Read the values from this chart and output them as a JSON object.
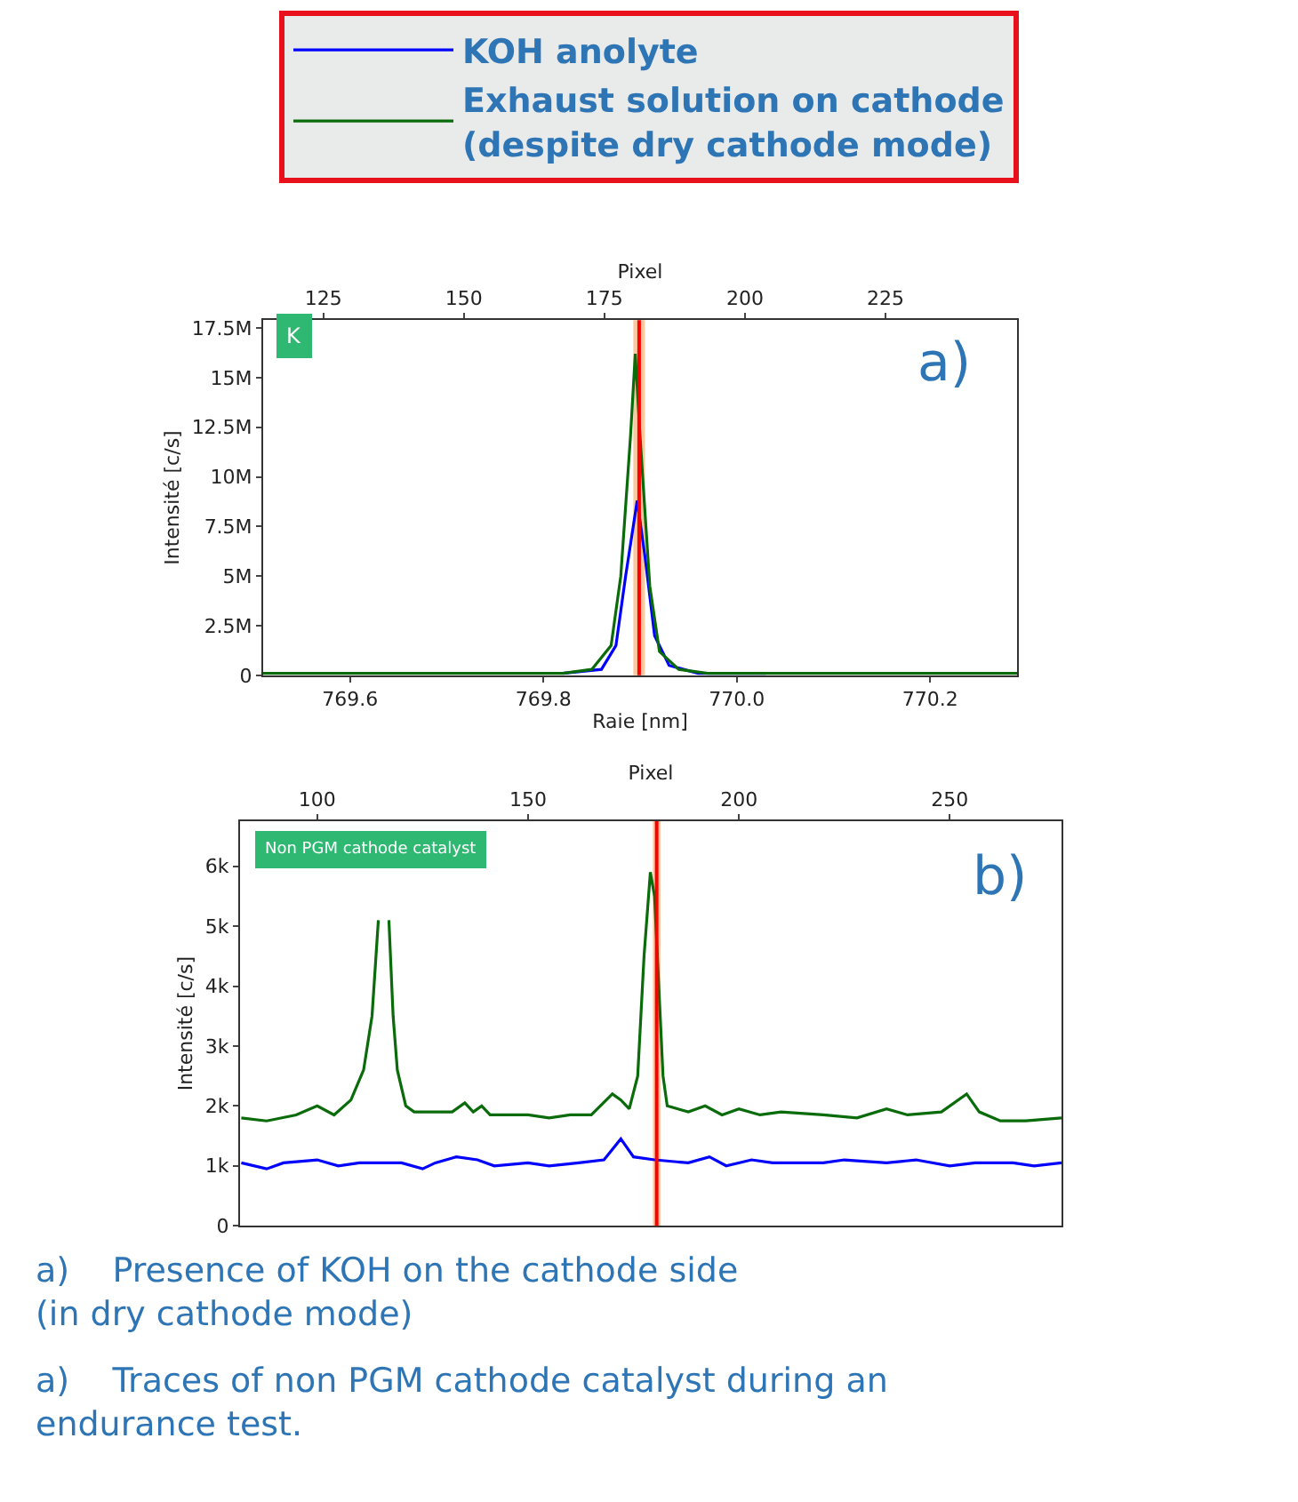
{
  "chart_data": [
    {
      "type": "line",
      "xlabel": "Raie [nm]",
      "x2label": "Pixel",
      "ylabel": "Intensité [c/s]",
      "xlim": [
        769.51,
        770.29
      ],
      "xticks": [
        {
          "value": 769.6,
          "label": "769.6"
        },
        {
          "value": 769.8,
          "label": "769.8"
        },
        {
          "value": 770.0,
          "label": "770.0"
        },
        {
          "value": 770.2,
          "label": "770.2"
        }
      ],
      "x2lim": [
        114.3,
        248.4
      ],
      "x2ticks": [
        125,
        150,
        175,
        200,
        225
      ],
      "ylim": [
        0,
        17900000
      ],
      "yticks": [
        0,
        {
          "value": 2500000,
          "label": "2.5M"
        },
        {
          "value": 5000000,
          "label": "5M"
        },
        {
          "value": 7500000,
          "label": "7.5M"
        },
        {
          "value": 10000000,
          "label": "10M"
        },
        {
          "value": 12500000,
          "label": "12.5M"
        },
        {
          "value": 15000000,
          "label": "15M"
        },
        {
          "value": 17500000,
          "label": "17.5M"
        }
      ],
      "series": [
        {
          "name": "KOH anolyte",
          "color": "#0000ff",
          "x": [
            769.82,
            769.86,
            769.875,
            769.885,
            769.897,
            769.905,
            769.915,
            769.93,
            769.96,
            770.03
          ],
          "values": [
            100000,
            300000,
            1500000,
            5000000,
            8800000,
            6000000,
            2000000,
            500000,
            100000,
            100000
          ]
        },
        {
          "name": "Exhaust solution on cathode\n(despite dry cathode mode)",
          "color": "#0a6b0a",
          "x": [
            769.51,
            769.82,
            769.85,
            769.87,
            769.88,
            769.89,
            769.895,
            769.9,
            769.91,
            769.92,
            769.94,
            769.97,
            770.29
          ],
          "values": [
            100000,
            100000,
            300000,
            1500000,
            5000000,
            12000000,
            16200000,
            12000000,
            4500000,
            1200000,
            300000,
            100000,
            100000
          ]
        }
      ],
      "ref_lines": [
        {
          "axis": "x",
          "value": 769.899,
          "color": "#ff0000"
        }
      ],
      "bands": [
        {
          "axis": "x",
          "from": 769.893,
          "to": 769.905,
          "color": "#f9c9a0"
        }
      ],
      "annotations": [
        "K",
        "a)"
      ],
      "legend": "top",
      "grid": false
    },
    {
      "type": "line",
      "xlabel": "Pixel",
      "ylabel": "Intensité [c/s]",
      "xlim": [
        81.7,
        276.5
      ],
      "xticks": [
        100,
        150,
        200,
        250
      ],
      "ylim": [
        0,
        6750
      ],
      "yticks": [
        0,
        {
          "value": 1000,
          "label": "1k"
        },
        {
          "value": 2000,
          "label": "2k"
        },
        {
          "value": 3000,
          "label": "3k"
        },
        {
          "value": 4000,
          "label": "4k"
        },
        {
          "value": 5000,
          "label": "5k"
        },
        {
          "value": 6000,
          "label": "6k"
        }
      ],
      "series": [
        {
          "color": "#0000ff",
          "x": [
            82,
            88,
            92,
            100,
            105,
            110,
            120,
            125,
            128,
            133,
            138,
            142,
            150,
            155,
            162,
            168,
            172,
            175,
            180,
            188,
            193,
            197,
            203,
            208,
            220,
            225,
            235,
            242,
            250,
            256,
            265,
            270,
            276.5
          ],
          "values": [
            1050,
            950,
            1050,
            1100,
            1000,
            1050,
            1050,
            950,
            1050,
            1150,
            1100,
            1000,
            1050,
            1000,
            1050,
            1100,
            1450,
            1150,
            1100,
            1050,
            1150,
            1000,
            1100,
            1050,
            1050,
            1100,
            1050,
            1100,
            1000,
            1050,
            1050,
            1000,
            1050
          ]
        },
        {
          "color": "#0a6b0a",
          "x": [
            82,
            88,
            95,
            100,
            104,
            108,
            111,
            113,
            114.5,
            115.8,
            117,
            118,
            119,
            121,
            123,
            127,
            132,
            135,
            137,
            139,
            141,
            150,
            155,
            160,
            165,
            170,
            172,
            174,
            176,
            177.5,
            179,
            180,
            181,
            182,
            183,
            188,
            192,
            196,
            200,
            205,
            210,
            220,
            228,
            235,
            240,
            248,
            254,
            257,
            262,
            268,
            276.5
          ],
          "values": [
            1800,
            1750,
            1850,
            2000,
            1850,
            2100,
            2600,
            3500,
            5100,
            null,
            5100,
            3500,
            2600,
            2000,
            1900,
            1900,
            1900,
            2050,
            1900,
            2000,
            1850,
            1850,
            1800,
            1850,
            1850,
            2200,
            2100,
            1950,
            2500,
            4500,
            5900,
            5500,
            4000,
            2500,
            2000,
            1900,
            2000,
            1850,
            1950,
            1850,
            1900,
            1850,
            1800,
            1950,
            1850,
            1900,
            2200,
            1900,
            1750,
            1750,
            1800
          ]
        }
      ],
      "ref_lines": [
        {
          "axis": "x",
          "value": 180.5,
          "color": "#ff0000"
        }
      ],
      "bands": [
        {
          "axis": "x",
          "from": 179.6,
          "to": 181.4,
          "color": "#f9c9a0"
        }
      ],
      "annotations": [
        "Non PGM cathode catalyst",
        "b)",
        "a)    Presence of KOH on the cathode side\n(in dry cathode mode)",
        "a)    Traces of non PGM cathode catalyst during an\nendurance test."
      ],
      "grid": false
    }
  ]
}
